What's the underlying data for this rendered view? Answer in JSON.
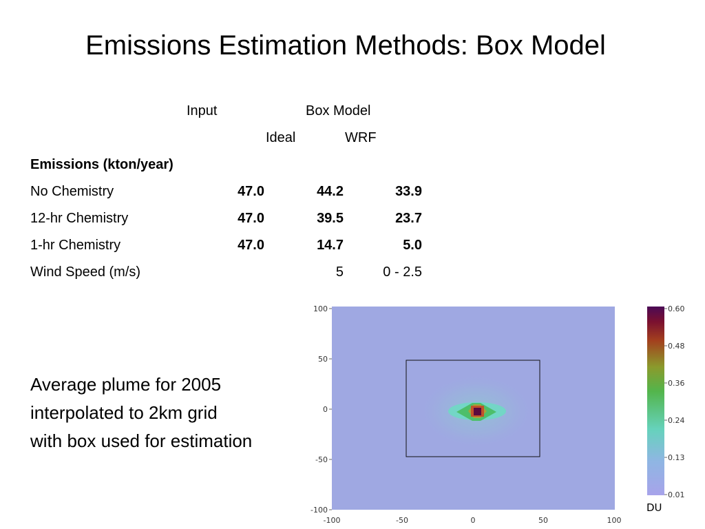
{
  "slide": {
    "title": "Emissions Estimation Methods: Box Model"
  },
  "table": {
    "headers": {
      "input": "Input",
      "box_model": "Box Model",
      "ideal": "Ideal",
      "wrf": "WRF"
    },
    "section_label": "Emissions (kton/year)",
    "rows": [
      {
        "label": "No Chemistry",
        "input": "47.0",
        "ideal": "44.2",
        "wrf": "33.9"
      },
      {
        "label": "12-hr Chemistry",
        "input": "47.0",
        "ideal": "39.5",
        "wrf": "23.7"
      },
      {
        "label": "1-hr Chemistry",
        "input": "47.0",
        "ideal": "14.7",
        "wrf": "5.0"
      }
    ],
    "wind_row": {
      "label": "Wind Speed (m/s)",
      "ideal": "5",
      "wrf": "0 - 2.5"
    }
  },
  "caption": {
    "lines": [
      "Average plume for 2005",
      "interpolated to 2km grid",
      "with box used for estimation"
    ]
  },
  "figure": {
    "x_ticks": [
      "-100",
      "-50",
      "0",
      "50",
      "100"
    ],
    "y_ticks": [
      "100",
      "50",
      "0",
      "-50",
      "-100"
    ],
    "colorbar_ticks": [
      "0.60",
      "0.48",
      "0.36",
      "0.24",
      "0.13",
      "0.01"
    ],
    "colorbar_unit": "DU",
    "background_color": "#9fa8e2",
    "box": {
      "x_min": -47,
      "x_max": 48,
      "y_min": -47,
      "y_max": 48
    }
  }
}
